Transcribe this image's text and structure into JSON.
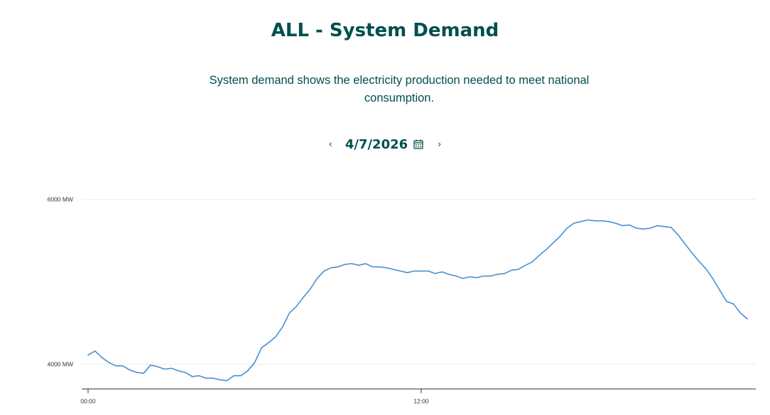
{
  "page": {
    "title": "ALL - System Demand",
    "description": "System demand shows the electricity production needed to meet national consumption."
  },
  "date_nav": {
    "prev_label": "‹",
    "date": "4/7/2026",
    "next_label": "›",
    "calendar_icon": "calendar-icon"
  },
  "colors": {
    "heading": "#004f4f",
    "line": "#4a8fce",
    "grid": "#eeeeee",
    "axis": "#333333"
  },
  "chart_data": {
    "type": "line",
    "title": "",
    "xlabel": "",
    "ylabel": "",
    "x_ticks": [
      {
        "label": "00:00",
        "hour": 0
      },
      {
        "label": "12:00",
        "hour": 12
      }
    ],
    "y_ticks": [
      {
        "label": "4000 MW",
        "value": 4000
      },
      {
        "label": "6000 MW",
        "value": 6000
      }
    ],
    "xlim": [
      0,
      24
    ],
    "ylim": [
      3700,
      6230
    ],
    "grid": "horizontal",
    "legend": "none",
    "series": [
      {
        "x": [
          0,
          0.25,
          0.5,
          0.75,
          1,
          1.25,
          1.5,
          1.75,
          2,
          2.25,
          2.5,
          2.75,
          3,
          3.25,
          3.5,
          3.75,
          4,
          4.25,
          4.5,
          4.75,
          5,
          5.25,
          5.5,
          5.75,
          6,
          6.25,
          6.5,
          6.75,
          7,
          7.25,
          7.5,
          7.75,
          8,
          8.25,
          8.5,
          8.75,
          9,
          9.25,
          9.5,
          9.75,
          10,
          10.25,
          10.5,
          10.75,
          11,
          11.25,
          11.5,
          11.75,
          12,
          12.25,
          12.5,
          12.75,
          13,
          13.25,
          13.5,
          13.75,
          14,
          14.25,
          14.5,
          14.75,
          15,
          15.25,
          15.5,
          15.75,
          16,
          16.25,
          16.5,
          16.75,
          17,
          17.25,
          17.5,
          17.75,
          18,
          18.25,
          18.5,
          18.75,
          19,
          19.25,
          19.5,
          19.75,
          20,
          20.25,
          20.5,
          20.75,
          21,
          21.25,
          21.5,
          21.75,
          22,
          22.25,
          22.5,
          22.75,
          23,
          23.25,
          23.5,
          23.75
        ],
        "values": [
          4110,
          4160,
          4080,
          4020,
          3980,
          3980,
          3930,
          3900,
          3890,
          3990,
          3970,
          3940,
          3950,
          3920,
          3900,
          3850,
          3860,
          3830,
          3830,
          3810,
          3800,
          3860,
          3860,
          3920,
          4020,
          4200,
          4260,
          4330,
          4450,
          4620,
          4700,
          4810,
          4910,
          5040,
          5130,
          5170,
          5180,
          5210,
          5220,
          5200,
          5220,
          5180,
          5180,
          5170,
          5150,
          5130,
          5110,
          5130,
          5130,
          5130,
          5100,
          5120,
          5090,
          5070,
          5040,
          5060,
          5050,
          5070,
          5070,
          5090,
          5100,
          5140,
          5150,
          5200,
          5240,
          5320,
          5390,
          5470,
          5550,
          5650,
          5710,
          5730,
          5750,
          5740,
          5740,
          5730,
          5710,
          5680,
          5690,
          5650,
          5640,
          5650,
          5680,
          5670,
          5660,
          5570,
          5460,
          5350,
          5250,
          5160,
          5040,
          4900,
          4760,
          4730,
          4620,
          4550
        ]
      }
    ]
  }
}
